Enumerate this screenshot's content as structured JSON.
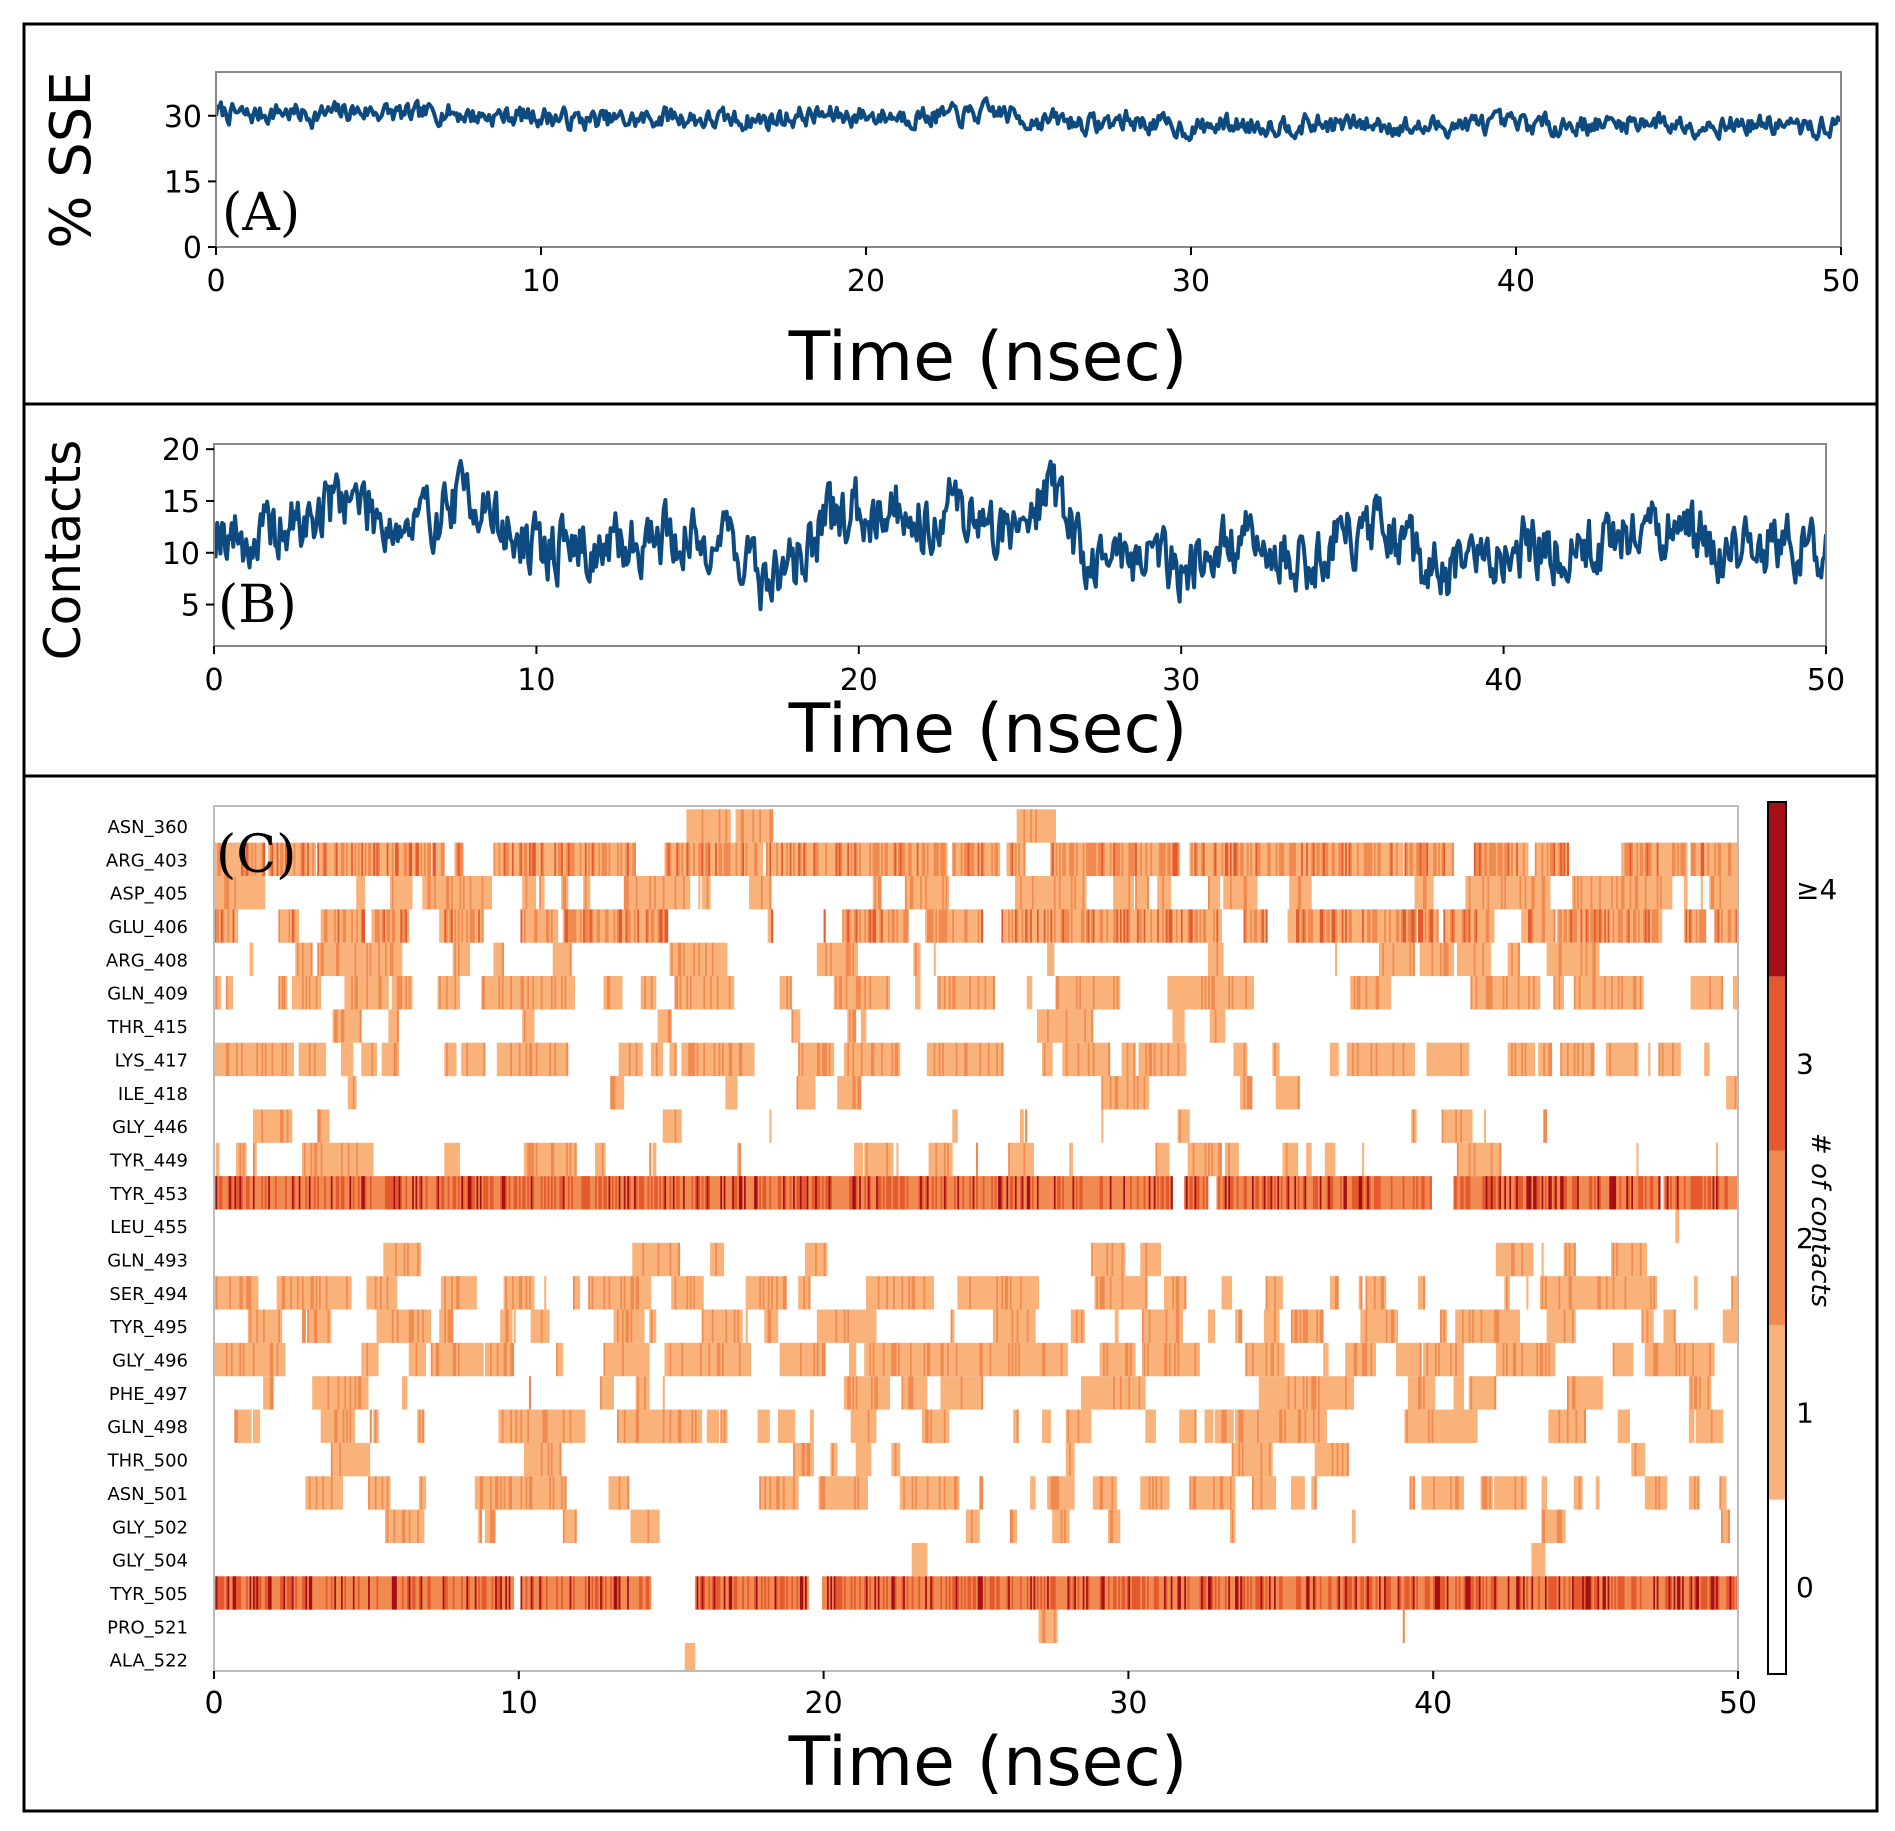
{
  "chart_data": [
    {
      "id": "A",
      "type": "line",
      "panel_label": "(A)",
      "xlabel": "Time (nsec)",
      "ylabel": "% SSE",
      "xlim": [
        0,
        50
      ],
      "ylim": [
        0,
        40
      ],
      "xticks": [
        0,
        10,
        20,
        30,
        40,
        50
      ],
      "yticks": [
        0,
        15,
        30
      ],
      "color": "#0d4a7f",
      "series": [
        {
          "name": "% SSE",
          "x": [
            0,
            1,
            2,
            3,
            4,
            5,
            6,
            7,
            8,
            9,
            10,
            11,
            12,
            13,
            14,
            15,
            16,
            17,
            18,
            19,
            20,
            21,
            22,
            23,
            24,
            25,
            26,
            27,
            28,
            29,
            30,
            31,
            32,
            33,
            34,
            35,
            36,
            37,
            38,
            39,
            40,
            41,
            42,
            43,
            44,
            45,
            46,
            47,
            48,
            49,
            50
          ],
          "values": [
            31,
            30,
            31,
            30,
            31,
            31,
            30,
            31,
            30,
            30,
            30,
            29,
            29,
            29,
            30,
            29,
            29,
            29,
            30,
            30,
            30,
            30,
            30,
            30,
            31,
            29,
            29,
            28,
            29,
            28,
            27,
            28,
            28,
            28,
            28,
            28,
            28,
            27,
            28,
            28,
            28,
            28,
            28,
            28,
            29,
            28,
            28,
            28,
            28,
            27,
            28
          ]
        }
      ]
    },
    {
      "id": "B",
      "type": "line",
      "panel_label": "(B)",
      "xlabel": "Time (nsec)",
      "ylabel": "Contacts",
      "xlim": [
        0,
        50
      ],
      "ylim": [
        1,
        20.5
      ],
      "xticks": [
        0,
        10,
        20,
        30,
        40,
        50
      ],
      "yticks": [
        5,
        10,
        15,
        20
      ],
      "color": "#0d4a7f",
      "series": [
        {
          "name": "Contacts",
          "x": [
            0,
            1,
            2,
            3,
            4,
            5,
            6,
            7,
            8,
            9,
            10,
            11,
            12,
            13,
            14,
            15,
            16,
            17,
            18,
            19,
            20,
            21,
            22,
            23,
            24,
            25,
            26,
            27,
            28,
            29,
            30,
            31,
            32,
            33,
            34,
            35,
            36,
            37,
            38,
            39,
            40,
            41,
            42,
            43,
            44,
            45,
            46,
            47,
            48,
            49,
            50
          ],
          "values": [
            13,
            11,
            12,
            13,
            16,
            14,
            12,
            14,
            16,
            12,
            10,
            11,
            10,
            11,
            12,
            11,
            12,
            7,
            9,
            13,
            14,
            15,
            13,
            15,
            12,
            13,
            17,
            9,
            10,
            10,
            9,
            10,
            11,
            10,
            9,
            12,
            12,
            10,
            8,
            9,
            10,
            11,
            10,
            11,
            12,
            12,
            11,
            10,
            11,
            10,
            11
          ]
        }
      ]
    },
    {
      "id": "C",
      "type": "heatmap",
      "panel_label": "(C)",
      "xlabel": "Time (nsec)",
      "xlim": [
        0,
        50
      ],
      "xticks": [
        0,
        10,
        20,
        30,
        40,
        50
      ],
      "colorbar_label": "# of contacts",
      "colorbar_ticks": [
        "0",
        "1",
        "2",
        "3",
        "≥4"
      ],
      "colorbar_colors": [
        "#ffffff",
        "#f9b27a",
        "#f18a50",
        "#e45a2e",
        "#a50f15"
      ],
      "residues": [
        "ASN_360",
        "ARG_403",
        "ASP_405",
        "GLU_406",
        "ARG_408",
        "GLN_409",
        "THR_415",
        "LYS_417",
        "ILE_418",
        "GLY_446",
        "TYR_449",
        "TYR_453",
        "LEU_455",
        "GLN_493",
        "SER_494",
        "TYR_495",
        "GLY_496",
        "PHE_497",
        "GLN_498",
        "THR_500",
        "ASN_501",
        "GLY_502",
        "GLY_504",
        "TYR_505",
        "PRO_521",
        "ALA_522"
      ],
      "occupancy": [
        0.02,
        0.85,
        0.55,
        0.75,
        0.25,
        0.5,
        0.05,
        0.55,
        0.08,
        0.12,
        0.3,
        0.95,
        0.01,
        0.15,
        0.6,
        0.35,
        0.55,
        0.3,
        0.45,
        0.1,
        0.4,
        0.12,
        0.02,
        0.97,
        0.01,
        0.01
      ]
    }
  ]
}
